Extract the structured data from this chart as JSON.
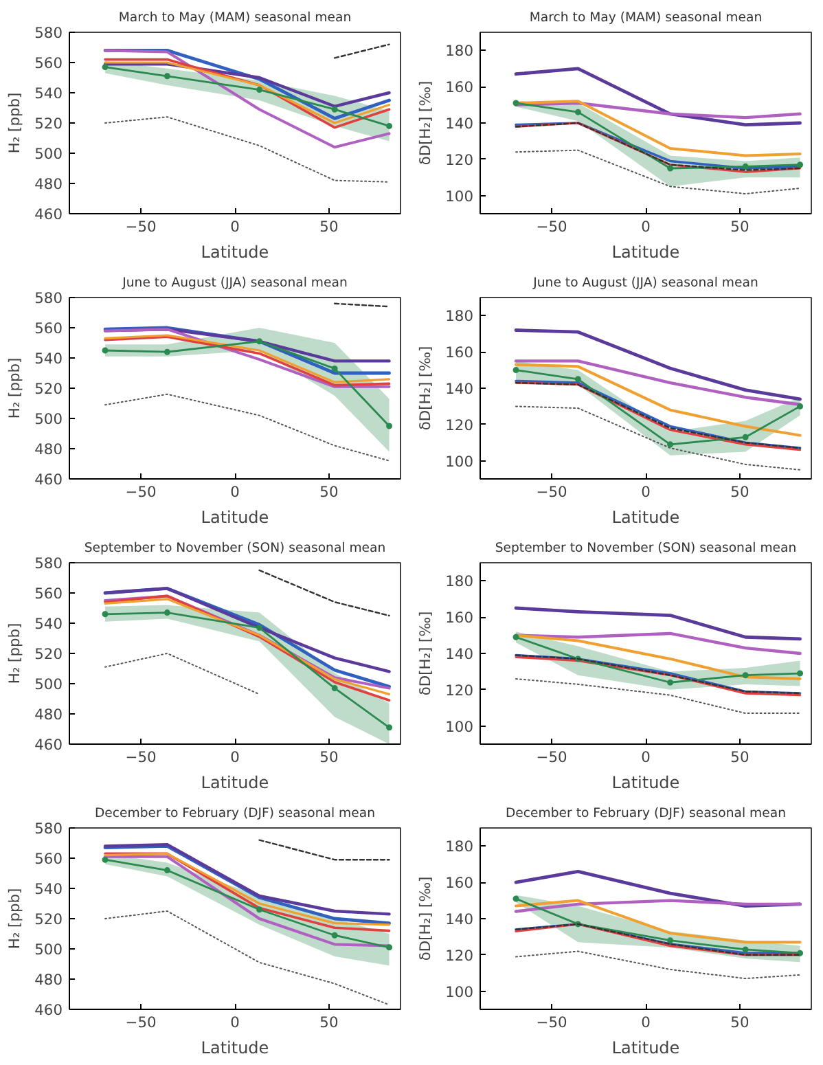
{
  "chart_data": [
    {
      "type": "line",
      "title": "March to May (MAM) seasonal mean",
      "xlabel": "Latitude",
      "ylabel": "H₂ [ppb]",
      "x": [
        -69,
        -36,
        13,
        53,
        82
      ],
      "xlim": [
        -88,
        88
      ],
      "xticks": [
        {
          "value": -50,
          "label": "−50"
        },
        {
          "value": 0,
          "label": "0"
        },
        {
          "value": 50,
          "label": "50"
        }
      ],
      "ylim": [
        460,
        580
      ],
      "yticks": [
        460,
        480,
        500,
        520,
        540,
        560,
        580
      ],
      "grid": false,
      "series": [
        {
          "color": "#3060c0",
          "values": [
            568,
            568,
            549,
            523,
            535
          ]
        },
        {
          "color": "#5a3a9a",
          "values": [
            559,
            559,
            550,
            531,
            540
          ]
        },
        {
          "color": "#b060c0",
          "values": [
            568,
            567,
            529,
            504,
            513
          ]
        },
        {
          "color": "#e04040",
          "values": [
            562,
            562,
            545,
            517,
            529
          ]
        },
        {
          "color": "#f0a030",
          "values": [
            560,
            560,
            545,
            520,
            532
          ]
        },
        {
          "color": "#2a8a50",
          "values": [
            557,
            551,
            542,
            529,
            518
          ],
          "lower": [
            553,
            545,
            535,
            518,
            508
          ],
          "upper": [
            561,
            556,
            548,
            538,
            528
          ],
          "marker": "circle"
        },
        {
          "color": "#333333",
          "values": [
            null,
            null,
            null,
            563,
            572
          ],
          "line_style": "dashed"
        },
        {
          "color": "#555555",
          "values": [
            520,
            524,
            505,
            482,
            481
          ],
          "line_style": "dotted"
        }
      ]
    },
    {
      "type": "line",
      "title": "March to May (MAM) seasonal mean",
      "xlabel": "Latitude",
      "ylabel": "δD[H₂] [‰]",
      "x": [
        -69,
        -36,
        13,
        53,
        82
      ],
      "xlim": [
        -88,
        88
      ],
      "xticks": [
        {
          "value": -50,
          "label": "−50"
        },
        {
          "value": 0,
          "label": "0"
        },
        {
          "value": 50,
          "label": "50"
        }
      ],
      "ylim": [
        90,
        190
      ],
      "yticks": [
        100,
        120,
        140,
        160,
        180
      ],
      "grid": false,
      "series": [
        {
          "color": "#5a3a9a",
          "values": [
            167,
            170,
            145,
            139,
            140
          ]
        },
        {
          "color": "#b060c0",
          "values": [
            150,
            151,
            145,
            143,
            145
          ]
        },
        {
          "color": "#f0a030",
          "values": [
            151,
            152,
            126,
            122,
            123
          ]
        },
        {
          "color": "#3060c0",
          "values": [
            139,
            140,
            119,
            115,
            116
          ]
        },
        {
          "color": "#e04040",
          "values": [
            138,
            140,
            117,
            113,
            115
          ]
        },
        {
          "color": "#2a8a50",
          "values": [
            151,
            146,
            115,
            116,
            117
          ],
          "lower": [
            149,
            141,
            105,
            110,
            110
          ],
          "upper": [
            152,
            151,
            122,
            119,
            121
          ],
          "marker": "circle"
        },
        {
          "color": "#333333",
          "values": [
            138,
            140,
            117,
            114,
            115
          ],
          "line_style": "dashed"
        },
        {
          "color": "#555555",
          "values": [
            124,
            125,
            105,
            101,
            104
          ],
          "line_style": "dotted"
        }
      ]
    },
    {
      "type": "line",
      "title": "June to August (JJA) seasonal mean",
      "xlabel": "Latitude",
      "ylabel": "H₂ [ppb]",
      "x": [
        -69,
        -36,
        13,
        53,
        82
      ],
      "xlim": [
        -88,
        88
      ],
      "xticks": [
        {
          "value": -50,
          "label": "−50"
        },
        {
          "value": 0,
          "label": "0"
        },
        {
          "value": 50,
          "label": "50"
        }
      ],
      "ylim": [
        460,
        580
      ],
      "yticks": [
        460,
        480,
        500,
        520,
        540,
        560,
        580
      ],
      "grid": false,
      "series": [
        {
          "color": "#3060c0",
          "values": [
            559,
            560,
            551,
            530,
            530
          ]
        },
        {
          "color": "#5a3a9a",
          "values": [
            558,
            559,
            551,
            538,
            538
          ]
        },
        {
          "color": "#b060c0",
          "values": [
            558,
            559,
            539,
            521,
            521
          ]
        },
        {
          "color": "#e04040",
          "values": [
            552,
            554,
            543,
            522,
            523
          ]
        },
        {
          "color": "#f0a030",
          "values": [
            553,
            555,
            545,
            524,
            526
          ]
        },
        {
          "color": "#2a8a50",
          "values": [
            545,
            544,
            551,
            533,
            495
          ],
          "lower": [
            541,
            541,
            545,
            515,
            478
          ],
          "upper": [
            549,
            549,
            560,
            550,
            513
          ],
          "marker": "circle"
        },
        {
          "color": "#333333",
          "values": [
            null,
            null,
            null,
            576,
            574
          ],
          "line_style": "dashed"
        },
        {
          "color": "#555555",
          "values": [
            509,
            516,
            502,
            482,
            472
          ],
          "line_style": "dotted"
        }
      ]
    },
    {
      "type": "line",
      "title": "June to August (JJA) seasonal mean",
      "xlabel": "Latitude",
      "ylabel": "δD[H₂] [‰]",
      "x": [
        -69,
        -36,
        13,
        53,
        82
      ],
      "xlim": [
        -88,
        88
      ],
      "xticks": [
        {
          "value": -50,
          "label": "−50"
        },
        {
          "value": 0,
          "label": "0"
        },
        {
          "value": 50,
          "label": "50"
        }
      ],
      "ylim": [
        90,
        190
      ],
      "yticks": [
        100,
        120,
        140,
        160,
        180
      ],
      "grid": false,
      "series": [
        {
          "color": "#5a3a9a",
          "values": [
            172,
            171,
            151,
            139,
            134
          ]
        },
        {
          "color": "#b060c0",
          "values": [
            155,
            155,
            143,
            135,
            131
          ]
        },
        {
          "color": "#f0a030",
          "values": [
            153,
            152,
            128,
            119,
            114
          ]
        },
        {
          "color": "#3060c0",
          "values": [
            144,
            143,
            119,
            110,
            107
          ]
        },
        {
          "color": "#e04040",
          "values": [
            143,
            142,
            117,
            109,
            106
          ]
        },
        {
          "color": "#2a8a50",
          "values": [
            150,
            145,
            109,
            113,
            130
          ],
          "lower": [
            144,
            142,
            103,
            105,
            125
          ],
          "upper": [
            155,
            150,
            116,
            122,
            135
          ],
          "marker": "circle"
        },
        {
          "color": "#333333",
          "values": [
            143,
            142,
            118,
            110,
            107
          ],
          "line_style": "dashed"
        },
        {
          "color": "#555555",
          "values": [
            130,
            129,
            107,
            98,
            95
          ],
          "line_style": "dotted"
        }
      ]
    },
    {
      "type": "line",
      "title": "September to November (SON) seasonal mean",
      "xlabel": "Latitude",
      "ylabel": "H₂ [ppb]",
      "x": [
        -69,
        -36,
        13,
        53,
        82
      ],
      "xlim": [
        -88,
        88
      ],
      "xticks": [
        {
          "value": -50,
          "label": "−50"
        },
        {
          "value": 0,
          "label": "0"
        },
        {
          "value": 50,
          "label": "50"
        }
      ],
      "ylim": [
        460,
        580
      ],
      "yticks": [
        460,
        480,
        500,
        520,
        540,
        560,
        580
      ],
      "grid": false,
      "series": [
        {
          "color": "#3060c0",
          "values": [
            560,
            563,
            539,
            509,
            498
          ]
        },
        {
          "color": "#5a3a9a",
          "values": [
            560,
            563,
            537,
            517,
            508
          ]
        },
        {
          "color": "#b060c0",
          "values": [
            555,
            558,
            532,
            504,
            497
          ]
        },
        {
          "color": "#e04040",
          "values": [
            554,
            558,
            531,
            501,
            489
          ]
        },
        {
          "color": "#f0a030",
          "values": [
            553,
            556,
            532,
            503,
            493
          ]
        },
        {
          "color": "#2a8a50",
          "values": [
            546,
            547,
            537,
            497,
            471
          ],
          "lower": [
            541,
            543,
            528,
            478,
            460
          ],
          "upper": [
            551,
            552,
            547,
            507,
            487
          ],
          "marker": "circle"
        },
        {
          "color": "#333333",
          "values": [
            null,
            null,
            575,
            554,
            545
          ],
          "line_style": "dashed"
        },
        {
          "color": "#555555",
          "values": [
            511,
            520,
            493,
            null,
            null
          ],
          "line_style": "dotted"
        }
      ]
    },
    {
      "type": "line",
      "title": "September to November (SON) seasonal mean",
      "xlabel": "Latitude",
      "ylabel": "δD[H₂] [‰]",
      "x": [
        -69,
        -36,
        13,
        53,
        82
      ],
      "xlim": [
        -88,
        88
      ],
      "xticks": [
        {
          "value": -50,
          "label": "−50"
        },
        {
          "value": 0,
          "label": "0"
        },
        {
          "value": 50,
          "label": "50"
        }
      ],
      "ylim": [
        90,
        190
      ],
      "yticks": [
        100,
        120,
        140,
        160,
        180
      ],
      "grid": false,
      "series": [
        {
          "color": "#5a3a9a",
          "values": [
            165,
            163,
            161,
            149,
            148
          ]
        },
        {
          "color": "#b060c0",
          "values": [
            150,
            149,
            151,
            143,
            140
          ]
        },
        {
          "color": "#f0a030",
          "values": [
            150,
            147,
            137,
            127,
            126
          ]
        },
        {
          "color": "#3060c0",
          "values": [
            139,
            137,
            129,
            119,
            118
          ]
        },
        {
          "color": "#e04040",
          "values": [
            138,
            136,
            128,
            118,
            117
          ]
        },
        {
          "color": "#2a8a50",
          "values": [
            149,
            137,
            124,
            128,
            129
          ],
          "lower": [
            146,
            128,
            120,
            123,
            122
          ],
          "upper": [
            152,
            144,
            130,
            132,
            136
          ],
          "marker": "circle"
        },
        {
          "color": "#333333",
          "values": [
            139,
            137,
            128,
            119,
            118
          ],
          "line_style": "dashed"
        },
        {
          "color": "#555555",
          "values": [
            126,
            123,
            117,
            107,
            107
          ],
          "line_style": "dotted"
        }
      ]
    },
    {
      "type": "line",
      "title": "December to February (DJF) seasonal mean",
      "xlabel": "Latitude",
      "ylabel": "H₂ [ppb]",
      "x": [
        -69,
        -36,
        13,
        53,
        82
      ],
      "xlim": [
        -88,
        88
      ],
      "xticks": [
        {
          "value": -50,
          "label": "−50"
        },
        {
          "value": 0,
          "label": "0"
        },
        {
          "value": 50,
          "label": "50"
        }
      ],
      "ylim": [
        460,
        580
      ],
      "yticks": [
        460,
        480,
        500,
        520,
        540,
        560,
        580
      ],
      "grid": false,
      "series": [
        {
          "color": "#3060c0",
          "values": [
            567,
            568,
            534,
            520,
            517
          ]
        },
        {
          "color": "#5a3a9a",
          "values": [
            568,
            569,
            535,
            525,
            523
          ]
        },
        {
          "color": "#b060c0",
          "values": [
            561,
            561,
            520,
            503,
            502
          ]
        },
        {
          "color": "#e04040",
          "values": [
            563,
            563,
            527,
            514,
            512
          ]
        },
        {
          "color": "#f0a030",
          "values": [
            562,
            563,
            530,
            517,
            516
          ]
        },
        {
          "color": "#2a8a50",
          "values": [
            559,
            552,
            526,
            509,
            501
          ],
          "lower": [
            556,
            548,
            516,
            495,
            489
          ],
          "upper": [
            563,
            557,
            535,
            520,
            510
          ],
          "marker": "circle"
        },
        {
          "color": "#333333",
          "values": [
            null,
            null,
            572,
            559,
            559
          ],
          "line_style": "dashed"
        },
        {
          "color": "#555555",
          "values": [
            520,
            525,
            491,
            477,
            463
          ],
          "line_style": "dotted"
        }
      ]
    },
    {
      "type": "line",
      "title": "December to February (DJF) seasonal mean",
      "xlabel": "Latitude",
      "ylabel": "δD[H₂] [‰]",
      "x": [
        -69,
        -36,
        13,
        53,
        82
      ],
      "xlim": [
        -88,
        88
      ],
      "xticks": [
        {
          "value": -50,
          "label": "−50"
        },
        {
          "value": 0,
          "label": "0"
        },
        {
          "value": 50,
          "label": "50"
        }
      ],
      "ylim": [
        90,
        190
      ],
      "yticks": [
        100,
        120,
        140,
        160,
        180
      ],
      "grid": false,
      "series": [
        {
          "color": "#5a3a9a",
          "values": [
            160,
            166,
            154,
            147,
            148
          ]
        },
        {
          "color": "#b060c0",
          "values": [
            144,
            148,
            150,
            148,
            148
          ]
        },
        {
          "color": "#f0a030",
          "values": [
            147,
            150,
            132,
            127,
            127
          ]
        },
        {
          "color": "#3060c0",
          "values": [
            134,
            137,
            126,
            121,
            121
          ]
        },
        {
          "color": "#e04040",
          "values": [
            133,
            137,
            125,
            120,
            120
          ]
        },
        {
          "color": "#2a8a50",
          "values": [
            151,
            137,
            128,
            123,
            121
          ],
          "lower": [
            149,
            127,
            124,
            118,
            116
          ],
          "upper": [
            153,
            147,
            133,
            128,
            125
          ],
          "marker": "circle"
        },
        {
          "color": "#333333",
          "values": [
            134,
            137,
            126,
            120,
            120
          ],
          "line_style": "dashed"
        },
        {
          "color": "#555555",
          "values": [
            119,
            122,
            112,
            107,
            109
          ],
          "line_style": "dotted"
        }
      ]
    }
  ]
}
